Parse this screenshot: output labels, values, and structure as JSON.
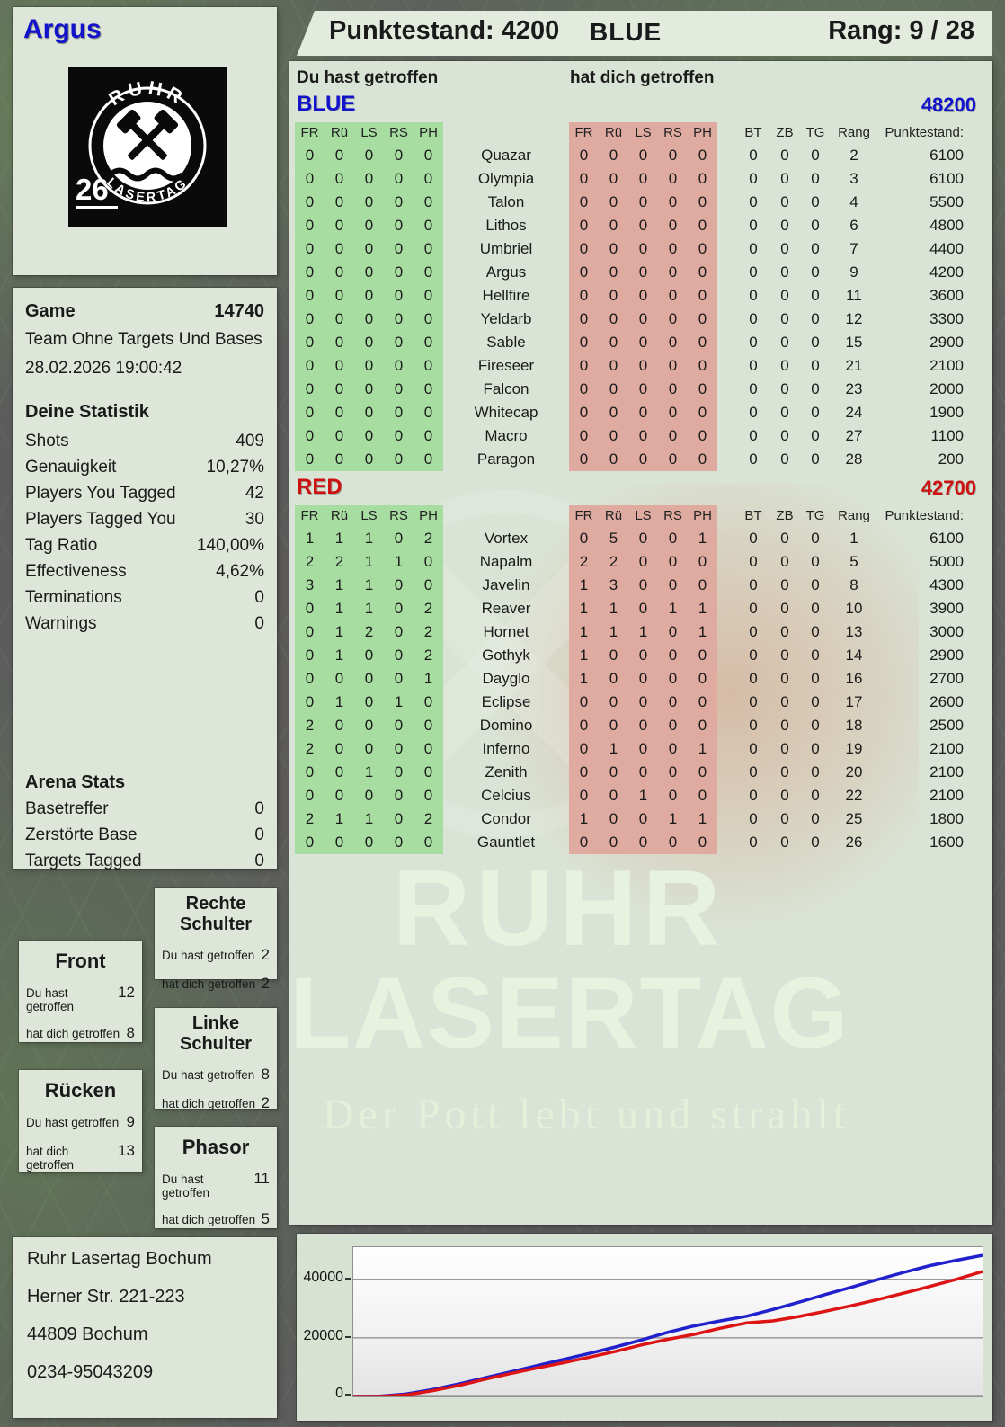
{
  "header": {
    "player": "Argus",
    "score_label": "Punktestand:",
    "score_value": "4200",
    "team": "BLUE",
    "rank_label": "Rang:",
    "rank_value": "9 / 28"
  },
  "logo": {
    "arc_top": "RUHR",
    "arc_bottom": "LASERTAG",
    "number": "26"
  },
  "game_info": {
    "game_label": "Game",
    "game_number": "14740",
    "mode": "Team Ohne Targets Und Bases",
    "datetime": "28.02.2026 19:00:42"
  },
  "your_stats": {
    "title": "Deine Statistik",
    "rows": [
      {
        "label": "Shots",
        "value": "409"
      },
      {
        "label": "Genauigkeit",
        "value": "10,27%"
      },
      {
        "label": "Players You Tagged",
        "value": "42"
      },
      {
        "label": "Players Tagged You",
        "value": "30"
      },
      {
        "label": "Tag Ratio",
        "value": "140,00%"
      },
      {
        "label": "Effectiveness",
        "value": "4,62%"
      },
      {
        "label": "Terminations",
        "value": "0"
      },
      {
        "label": "Warnings",
        "value": "0"
      }
    ]
  },
  "arena_stats": {
    "title": "Arena Stats",
    "rows": [
      {
        "label": "Basetreffer",
        "value": "0"
      },
      {
        "label": "Zerstörte Base",
        "value": "0"
      },
      {
        "label": "Targets Tagged",
        "value": "0"
      }
    ]
  },
  "hit_zones": {
    "du_label": "Du hast getroffen",
    "dich_label": "hat dich getroffen",
    "boxes": [
      {
        "title": "Rechte Schulter",
        "du": "2",
        "dich": "2"
      },
      {
        "title": "Front",
        "du": "12",
        "dich": "8"
      },
      {
        "title": "Linke Schulter",
        "du": "8",
        "dich": "2"
      },
      {
        "title": "Rücken",
        "du": "9",
        "dich": "13"
      },
      {
        "title": "Phasor",
        "du": "11",
        "dich": "5"
      }
    ]
  },
  "scoreboard": {
    "left_header": "Du hast getroffen",
    "right_header": "hat dich getroffen",
    "zone_columns": [
      "FR",
      "Rü",
      "LS",
      "RS",
      "PH"
    ],
    "extra_columns": [
      "BT",
      "ZB",
      "TG",
      "Rang",
      "Punktestand:"
    ],
    "teams": [
      {
        "name": "BLUE",
        "color": "#1313cc",
        "total": "48200",
        "rows": [
          {
            "hits": [
              0,
              0,
              0,
              0,
              0
            ],
            "name": "Quazar",
            "got": [
              0,
              0,
              0,
              0,
              0
            ],
            "bt": 0,
            "zb": 0,
            "tg": 0,
            "rang": 2,
            "score": 6100
          },
          {
            "hits": [
              0,
              0,
              0,
              0,
              0
            ],
            "name": "Olympia",
            "got": [
              0,
              0,
              0,
              0,
              0
            ],
            "bt": 0,
            "zb": 0,
            "tg": 0,
            "rang": 3,
            "score": 6100
          },
          {
            "hits": [
              0,
              0,
              0,
              0,
              0
            ],
            "name": "Talon",
            "got": [
              0,
              0,
              0,
              0,
              0
            ],
            "bt": 0,
            "zb": 0,
            "tg": 0,
            "rang": 4,
            "score": 5500
          },
          {
            "hits": [
              0,
              0,
              0,
              0,
              0
            ],
            "name": "Lithos",
            "got": [
              0,
              0,
              0,
              0,
              0
            ],
            "bt": 0,
            "zb": 0,
            "tg": 0,
            "rang": 6,
            "score": 4800
          },
          {
            "hits": [
              0,
              0,
              0,
              0,
              0
            ],
            "name": "Umbriel",
            "got": [
              0,
              0,
              0,
              0,
              0
            ],
            "bt": 0,
            "zb": 0,
            "tg": 0,
            "rang": 7,
            "score": 4400
          },
          {
            "hits": [
              0,
              0,
              0,
              0,
              0
            ],
            "name": "Argus",
            "got": [
              0,
              0,
              0,
              0,
              0
            ],
            "bt": 0,
            "zb": 0,
            "tg": 0,
            "rang": 9,
            "score": 4200
          },
          {
            "hits": [
              0,
              0,
              0,
              0,
              0
            ],
            "name": "Hellfire",
            "got": [
              0,
              0,
              0,
              0,
              0
            ],
            "bt": 0,
            "zb": 0,
            "tg": 0,
            "rang": 11,
            "score": 3600
          },
          {
            "hits": [
              0,
              0,
              0,
              0,
              0
            ],
            "name": "Yeldarb",
            "got": [
              0,
              0,
              0,
              0,
              0
            ],
            "bt": 0,
            "zb": 0,
            "tg": 0,
            "rang": 12,
            "score": 3300
          },
          {
            "hits": [
              0,
              0,
              0,
              0,
              0
            ],
            "name": "Sable",
            "got": [
              0,
              0,
              0,
              0,
              0
            ],
            "bt": 0,
            "zb": 0,
            "tg": 0,
            "rang": 15,
            "score": 2900
          },
          {
            "hits": [
              0,
              0,
              0,
              0,
              0
            ],
            "name": "Fireseer",
            "got": [
              0,
              0,
              0,
              0,
              0
            ],
            "bt": 0,
            "zb": 0,
            "tg": 0,
            "rang": 21,
            "score": 2100
          },
          {
            "hits": [
              0,
              0,
              0,
              0,
              0
            ],
            "name": "Falcon",
            "got": [
              0,
              0,
              0,
              0,
              0
            ],
            "bt": 0,
            "zb": 0,
            "tg": 0,
            "rang": 23,
            "score": 2000
          },
          {
            "hits": [
              0,
              0,
              0,
              0,
              0
            ],
            "name": "Whitecap",
            "got": [
              0,
              0,
              0,
              0,
              0
            ],
            "bt": 0,
            "zb": 0,
            "tg": 0,
            "rang": 24,
            "score": 1900
          },
          {
            "hits": [
              0,
              0,
              0,
              0,
              0
            ],
            "name": "Macro",
            "got": [
              0,
              0,
              0,
              0,
              0
            ],
            "bt": 0,
            "zb": 0,
            "tg": 0,
            "rang": 27,
            "score": 1100
          },
          {
            "hits": [
              0,
              0,
              0,
              0,
              0
            ],
            "name": "Paragon",
            "got": [
              0,
              0,
              0,
              0,
              0
            ],
            "bt": 0,
            "zb": 0,
            "tg": 0,
            "rang": 28,
            "score": 200
          }
        ]
      },
      {
        "name": "RED",
        "color": "#cc1111",
        "total": "42700",
        "rows": [
          {
            "hits": [
              1,
              1,
              1,
              0,
              2
            ],
            "name": "Vortex",
            "got": [
              0,
              5,
              0,
              0,
              1
            ],
            "bt": 0,
            "zb": 0,
            "tg": 0,
            "rang": 1,
            "score": 6100
          },
          {
            "hits": [
              2,
              2,
              1,
              1,
              0
            ],
            "name": "Napalm",
            "got": [
              2,
              2,
              0,
              0,
              0
            ],
            "bt": 0,
            "zb": 0,
            "tg": 0,
            "rang": 5,
            "score": 5000
          },
          {
            "hits": [
              3,
              1,
              1,
              0,
              0
            ],
            "name": "Javelin",
            "got": [
              1,
              3,
              0,
              0,
              0
            ],
            "bt": 0,
            "zb": 0,
            "tg": 0,
            "rang": 8,
            "score": 4300
          },
          {
            "hits": [
              0,
              1,
              1,
              0,
              2
            ],
            "name": "Reaver",
            "got": [
              1,
              1,
              0,
              1,
              1
            ],
            "bt": 0,
            "zb": 0,
            "tg": 0,
            "rang": 10,
            "score": 3900
          },
          {
            "hits": [
              0,
              1,
              2,
              0,
              2
            ],
            "name": "Hornet",
            "got": [
              1,
              1,
              1,
              0,
              1
            ],
            "bt": 0,
            "zb": 0,
            "tg": 0,
            "rang": 13,
            "score": 3000
          },
          {
            "hits": [
              0,
              1,
              0,
              0,
              2
            ],
            "name": "Gothyk",
            "got": [
              1,
              0,
              0,
              0,
              0
            ],
            "bt": 0,
            "zb": 0,
            "tg": 0,
            "rang": 14,
            "score": 2900
          },
          {
            "hits": [
              0,
              0,
              0,
              0,
              1
            ],
            "name": "Dayglo",
            "got": [
              1,
              0,
              0,
              0,
              0
            ],
            "bt": 0,
            "zb": 0,
            "tg": 0,
            "rang": 16,
            "score": 2700
          },
          {
            "hits": [
              0,
              1,
              0,
              1,
              0
            ],
            "name": "Eclipse",
            "got": [
              0,
              0,
              0,
              0,
              0
            ],
            "bt": 0,
            "zb": 0,
            "tg": 0,
            "rang": 17,
            "score": 2600
          },
          {
            "hits": [
              2,
              0,
              0,
              0,
              0
            ],
            "name": "Domino",
            "got": [
              0,
              0,
              0,
              0,
              0
            ],
            "bt": 0,
            "zb": 0,
            "tg": 0,
            "rang": 18,
            "score": 2500
          },
          {
            "hits": [
              2,
              0,
              0,
              0,
              0
            ],
            "name": "Inferno",
            "got": [
              0,
              1,
              0,
              0,
              1
            ],
            "bt": 0,
            "zb": 0,
            "tg": 0,
            "rang": 19,
            "score": 2100
          },
          {
            "hits": [
              0,
              0,
              1,
              0,
              0
            ],
            "name": "Zenith",
            "got": [
              0,
              0,
              0,
              0,
              0
            ],
            "bt": 0,
            "zb": 0,
            "tg": 0,
            "rang": 20,
            "score": 2100
          },
          {
            "hits": [
              0,
              0,
              0,
              0,
              0
            ],
            "name": "Celcius",
            "got": [
              0,
              0,
              1,
              0,
              0
            ],
            "bt": 0,
            "zb": 0,
            "tg": 0,
            "rang": 22,
            "score": 2100
          },
          {
            "hits": [
              2,
              1,
              1,
              0,
              2
            ],
            "name": "Condor",
            "got": [
              1,
              0,
              0,
              1,
              1
            ],
            "bt": 0,
            "zb": 0,
            "tg": 0,
            "rang": 25,
            "score": 1800
          },
          {
            "hits": [
              0,
              0,
              0,
              0,
              0
            ],
            "name": "Gauntlet",
            "got": [
              0,
              0,
              0,
              0,
              0
            ],
            "bt": 0,
            "zb": 0,
            "tg": 0,
            "rang": 26,
            "score": 1600
          }
        ]
      }
    ]
  },
  "watermark": {
    "line1": "RUHR",
    "line2": "LASERTAG",
    "line3": "Der Pott lebt und strahlt"
  },
  "address": {
    "lines": [
      "Ruhr Lasertag Bochum",
      "Herner Str. 221-223",
      "44809 Bochum",
      "0234-95043209"
    ]
  },
  "chart_data": {
    "type": "line",
    "title": "",
    "xlabel": "",
    "ylabel": "",
    "ylim": [
      0,
      51000
    ],
    "yticks": [
      0,
      20000,
      40000
    ],
    "grid": true,
    "legend": "none",
    "series": [
      {
        "name": "BLUE",
        "color": "#2020cc",
        "final_score": 48200,
        "values": [
          0,
          100,
          800,
          2300,
          4200,
          6300,
          8400,
          10500,
          12600,
          14700,
          16900,
          19300,
          21900,
          24100,
          25800,
          27400,
          29700,
          32200,
          34800,
          37300,
          39900,
          42400,
          44700,
          46500,
          48200
        ]
      },
      {
        "name": "RED",
        "color": "#dd1414",
        "final_score": 42700,
        "values": [
          0,
          0,
          500,
          1900,
          3700,
          5800,
          7800,
          9700,
          11500,
          13400,
          15400,
          17600,
          19500,
          21200,
          23300,
          25100,
          25800,
          27300,
          29100,
          31000,
          33100,
          35300,
          37600,
          40000,
          42700
        ]
      }
    ]
  }
}
